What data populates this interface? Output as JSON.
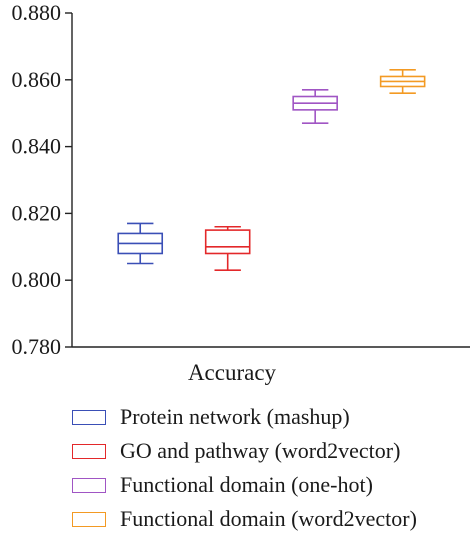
{
  "chart_data": {
    "type": "box",
    "categories": [
      "Accuracy"
    ],
    "ylim": [
      0.78,
      0.88
    ],
    "yticks": [
      "0.780",
      "0.800",
      "0.820",
      "0.840",
      "0.860",
      "0.880"
    ],
    "series": [
      {
        "name": "Protein network (mashup)",
        "color": "#3a4fb6",
        "min": 0.805,
        "q1": 0.808,
        "median": 0.811,
        "q3": 0.814,
        "max": 0.817
      },
      {
        "name": "GO and pathway (word2vector)",
        "color": "#e3282a",
        "min": 0.803,
        "q1": 0.808,
        "median": 0.81,
        "q3": 0.815,
        "max": 0.816
      },
      {
        "name": "Functional domain (one-hot)",
        "color": "#a055c4",
        "min": 0.847,
        "q1": 0.851,
        "median": 0.853,
        "q3": 0.855,
        "max": 0.857
      },
      {
        "name": "Functional domain (word2vector)",
        "color": "#f39a23",
        "min": 0.856,
        "q1": 0.858,
        "median": 0.8595,
        "q3": 0.861,
        "max": 0.863
      }
    ]
  }
}
